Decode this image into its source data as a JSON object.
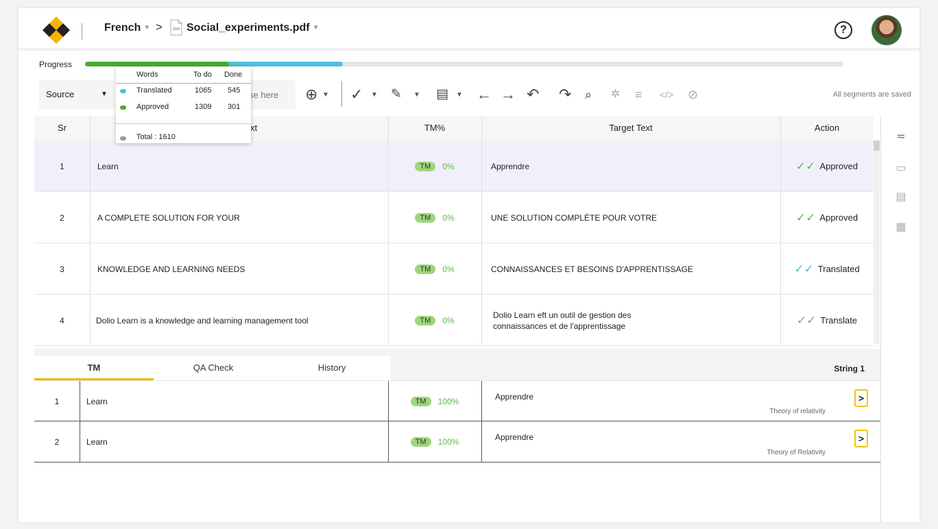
{
  "header": {
    "language": "French",
    "breadcrumb_arrow": ">",
    "file_name": "Social_experiments.pdf",
    "help_label": "?"
  },
  "progress": {
    "label": "Progress",
    "approved_fraction": 0.19,
    "translated_fraction": 0.34,
    "colors": {
      "approved": "#4caa2c",
      "translated": "#50c0d8",
      "track": "#e6e6e6"
    }
  },
  "legend": {
    "headers": {
      "words": "Words",
      "todo": "To do",
      "done": "Done"
    },
    "rows": [
      {
        "label": "Translated",
        "todo": "1065",
        "done": "545",
        "color": "#50c0d8"
      },
      {
        "label": "Approved",
        "todo": "1309",
        "done": "301",
        "color": "#4caa2c"
      }
    ],
    "total": "Total : 1610",
    "total_color": "#999999"
  },
  "toolbar": {
    "source_label": "Source",
    "search_placeholder": "se here",
    "status": "All segments are saved",
    "icons": [
      "download-icon",
      "check-icon",
      "eraser-icon",
      "document-icon",
      "arrow-left-icon",
      "arrow-right-icon",
      "undo-icon",
      "redo-icon",
      "find-icon",
      "ai-icon",
      "align-icon",
      "code-icon",
      "hide-icon"
    ]
  },
  "table": {
    "columns": {
      "sr": "Sr",
      "source": "xt",
      "tm": "TM%",
      "target": "Target Text",
      "action": "Action"
    },
    "rows": [
      {
        "sr": "1",
        "source": "Learn",
        "tm_tag": "TM",
        "tm_pct": "0%",
        "target": "Apprendre",
        "action": "Approved",
        "check_color": "#5cb84a"
      },
      {
        "sr": "2",
        "source": "A COMPLETE SOLUTION FOR YOUR",
        "tm_tag": "TM",
        "tm_pct": "0%",
        "target": "UNE SOLUTION COMPLÈTE POUR VOTRE",
        "action": "Approved",
        "check_color": "#5cb84a"
      },
      {
        "sr": "3",
        "source": "KNOWLEDGE AND LEARNING NEEDS",
        "tm_tag": "TM",
        "tm_pct": "0%",
        "target": "CONNAISSANCES ET BESOINS D'APPRENTISSAGE",
        "action": "Translated",
        "check_color": "#50c0d8"
      },
      {
        "sr": "4",
        "source": "Dolio  Learn is a knowledge and learning management tool",
        "tm_tag": "TM",
        "tm_pct": "0%",
        "target": "Dolio Learn eft un outil de gestion des connaissances et de l'apprentissage",
        "action": "Translate",
        "check_color": "#999999"
      }
    ]
  },
  "bottom": {
    "tabs": [
      "TM",
      "QA Check",
      "History"
    ],
    "active_tab": "TM",
    "string_label": "String 1",
    "rows": [
      {
        "sr": "1",
        "source": "Learn",
        "tm_tag": "TM",
        "tm_pct": "100%",
        "target": "Apprendre",
        "meta": "Theory of relativity",
        "go": ">"
      },
      {
        "sr": "2",
        "source": "Learn",
        "tm_tag": "TM",
        "tm_pct": "100%",
        "target": "Apprendre",
        "meta": "Theory of Relativity",
        "go": ">"
      }
    ]
  },
  "side_panel": {
    "icons": [
      "filter-icon",
      "comment-icon",
      "notes-icon",
      "calculator-icon"
    ]
  },
  "colors": {
    "accent": "#f5b400",
    "selected_row": "#f1f0fa",
    "tm_pill": "#9ed67c"
  }
}
